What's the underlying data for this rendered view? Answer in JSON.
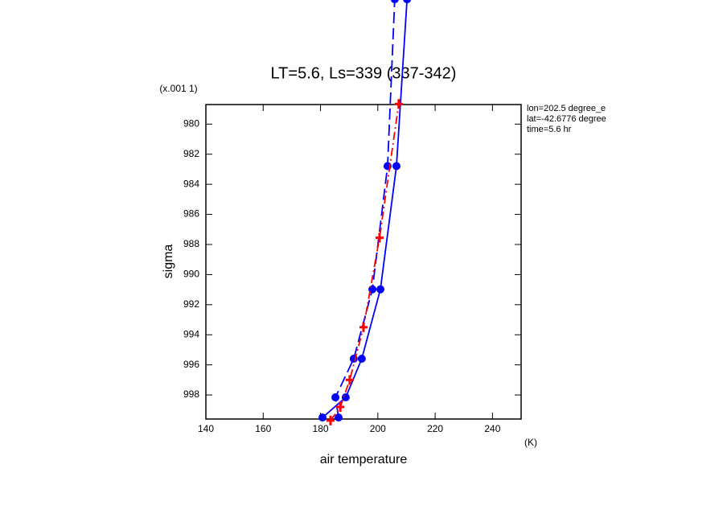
{
  "chart_data": {
    "type": "line",
    "title": "LT=5.6, Ls=339 (337-342)",
    "y_scale_note": "(x.001 1)",
    "xlabel": "air temperature",
    "xunits": "(K)",
    "ylabel": "sigma",
    "notes": [
      "lon=202.5 degree_e",
      "lat=-42.6776 degree",
      "time=5.6 hr"
    ],
    "xlim": [
      140,
      250
    ],
    "xticks": [
      140,
      160,
      180,
      200,
      220,
      240
    ],
    "ylim": [
      999.6,
      978.7
    ],
    "yticks": [
      980,
      982,
      984,
      986,
      988,
      990,
      992,
      994,
      996,
      998
    ],
    "series": [
      {
        "color": "#0000ff",
        "dash": "solid",
        "marker": "circle",
        "x": [
          180.7,
          188.8,
          194.4,
          200.9,
          206.5,
          210.2
        ],
        "values": [
          999.5,
          998.16,
          995.59,
          990.98,
          982.79,
          971.7
        ]
      },
      {
        "color": "#0000ff",
        "dash": "dashed",
        "marker": "circle",
        "x": [
          186.3,
          185.2,
          191.6,
          198.1,
          203.4,
          205.9
        ],
        "values": [
          999.5,
          998.16,
          995.59,
          990.98,
          982.79,
          971.7
        ]
      },
      {
        "color": "#ff0000",
        "dash": "dashdot",
        "marker": "plus",
        "x": [
          183.5,
          186.9,
          190.2,
          195.0,
          200.6,
          207.3
        ],
        "values": [
          999.7,
          998.8,
          997.0,
          993.5,
          987.55,
          978.66
        ]
      }
    ]
  }
}
